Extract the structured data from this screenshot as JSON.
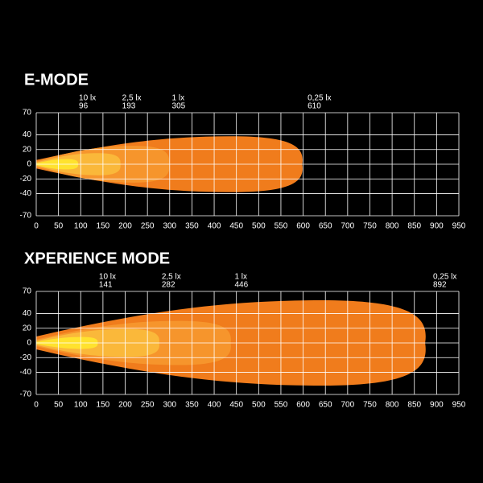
{
  "chart_data": [
    {
      "type": "beam",
      "title": "E-MODE",
      "zones": [
        {
          "name": "0,25 lx",
          "reach": 610,
          "half_width": 38,
          "color": "#f07c1c"
        },
        {
          "name": "1 lx",
          "reach": 305,
          "half_width": 25,
          "color": "#f6952c"
        },
        {
          "name": "2,5 lx",
          "reach": 193,
          "half_width": 15,
          "color": "#fab83a"
        },
        {
          "name": "10 lx",
          "reach": 96,
          "half_width": 7,
          "color": "#ffe22e"
        }
      ],
      "xlim": [
        0,
        950
      ],
      "xticks": [
        0,
        50,
        100,
        150,
        200,
        250,
        300,
        350,
        400,
        450,
        500,
        550,
        600,
        650,
        700,
        750,
        800,
        850,
        900,
        950
      ],
      "ylim": [
        -70,
        70
      ],
      "yticks": [
        70,
        40,
        20,
        0,
        -20,
        -40,
        -70
      ],
      "grid": true
    },
    {
      "type": "beam",
      "title": "XPERIENCE MODE",
      "zones": [
        {
          "name": "0,25 lx",
          "reach": 892,
          "half_width": 58,
          "color": "#f07c1c"
        },
        {
          "name": "1 lx",
          "reach": 446,
          "half_width": 30,
          "color": "#f6952c"
        },
        {
          "name": "2,5 lx",
          "reach": 282,
          "half_width": 19,
          "color": "#fab83a"
        },
        {
          "name": "10 lx",
          "reach": 141,
          "half_width": 8,
          "color": "#ffe22e"
        }
      ],
      "xlim": [
        0,
        950
      ],
      "xticks": [
        0,
        50,
        100,
        150,
        200,
        250,
        300,
        350,
        400,
        450,
        500,
        550,
        600,
        650,
        700,
        750,
        800,
        850,
        900,
        950
      ],
      "ylim": [
        -70,
        70
      ],
      "yticks": [
        70,
        40,
        20,
        0,
        -20,
        -40,
        -70
      ],
      "grid": true
    }
  ]
}
